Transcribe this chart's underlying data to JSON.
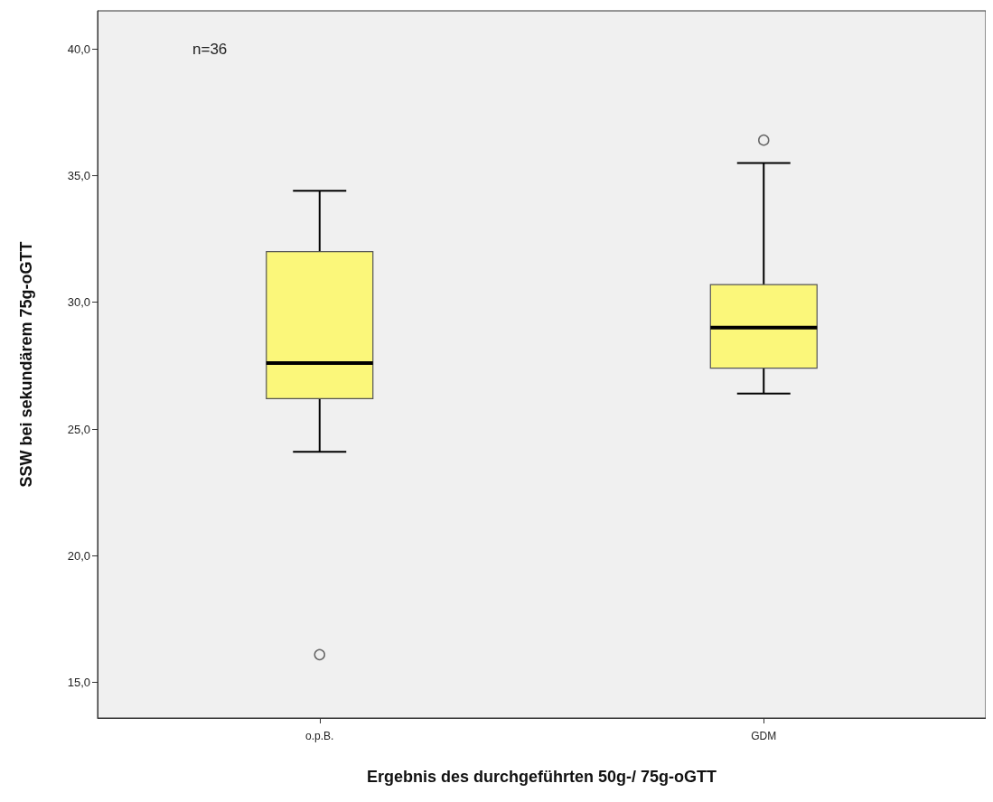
{
  "chart_data": {
    "type": "box",
    "xlabel": "Ergebnis des durchgeführten 50g-/ 75g-oGTT",
    "ylabel": "SSW bei sekundärem 75g-oGTT",
    "annotations": [
      "n=36"
    ],
    "categories": [
      "o.p.B.",
      "GDM"
    ],
    "color": "#fbf77a",
    "boxes": [
      {
        "low": 24.1,
        "q1": 26.2,
        "median": 27.6,
        "q3": 32.0,
        "high": 34.4,
        "outliers": [
          16.1
        ]
      },
      {
        "low": 26.4,
        "q1": 27.4,
        "median": 29.0,
        "q3": 30.7,
        "high": 35.5,
        "outliers": [
          36.4
        ]
      }
    ],
    "ylim": [
      13.6,
      41.5
    ],
    "yticks": [
      {
        "value": 15,
        "label": "15,0"
      },
      {
        "value": 20,
        "label": "20,0"
      },
      {
        "value": 25,
        "label": "25,0"
      },
      {
        "value": 30,
        "label": "30,0"
      },
      {
        "value": 35,
        "label": "35,0"
      },
      {
        "value": 40,
        "label": "40,0"
      }
    ],
    "grid": false
  }
}
